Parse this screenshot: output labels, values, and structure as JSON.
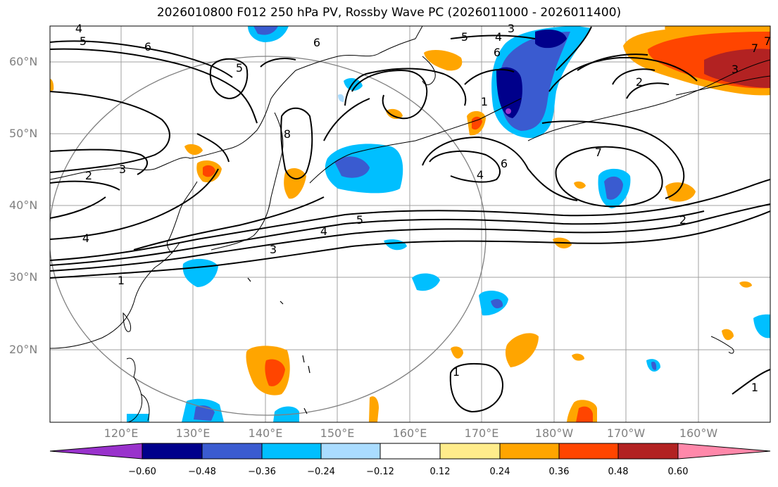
{
  "title": "2026010800 F012 250 hPa PV, Rossby Wave PC (2026011000 - 2026011400)",
  "lat_labels": [
    "60°N",
    "50°N",
    "40°N",
    "30°N",
    "20°N"
  ],
  "lon_labels": [
    "120°E",
    "130°E",
    "140°E",
    "150°E",
    "160°E",
    "170°E",
    "180°W",
    "170°W",
    "160°W"
  ],
  "contour_labels": [
    "5",
    "6",
    "6",
    "5",
    "4",
    "3",
    "5",
    "4",
    "6",
    "2",
    "3",
    "2",
    "3",
    "4",
    "8",
    "7",
    "7",
    "1",
    "6",
    "4",
    "7",
    "2",
    "5",
    "4",
    "3",
    "1",
    "1",
    "1"
  ],
  "colorbar": {
    "colors": [
      "#9932cc",
      "#00008b",
      "#3a5bd0",
      "#00bfff",
      "#aadcff",
      "#ffffff",
      "#ffec8b",
      "#ffa500",
      "#ff4500",
      "#b22222",
      "#ff88aa"
    ],
    "ticks": [
      "−0.60",
      "−0.48",
      "−0.36",
      "−0.24",
      "−0.12",
      "0.12",
      "0.24",
      "0.36",
      "0.48",
      "0.60"
    ]
  }
}
